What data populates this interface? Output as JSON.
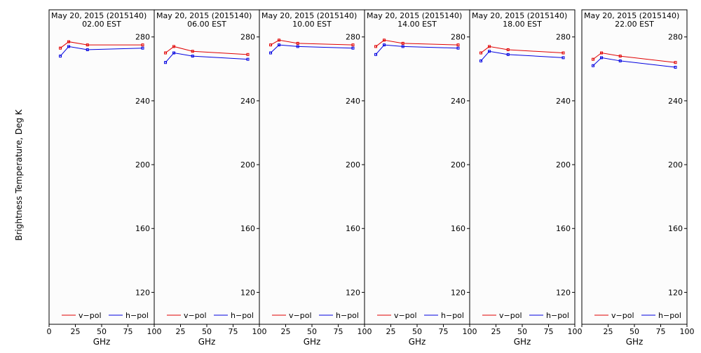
{
  "figure": {
    "ylabel": "Brightness Temperature, Deg K",
    "xlabel": "GHz"
  },
  "colors": {
    "v_pol": "#e00000",
    "h_pol": "#0000e0",
    "plot_bg": "#fcfcfc",
    "axis": "#000000"
  },
  "chart_data": [
    {
      "type": "line",
      "title": "May 20, 2015 (2015140)",
      "subtitle": "02.00 EST",
      "x": [
        10.7,
        18.7,
        36.5,
        89.0
      ],
      "series": [
        {
          "name": "v−pol",
          "values": [
            273,
            277,
            275,
            275
          ]
        },
        {
          "name": "h−pol",
          "values": [
            268,
            274,
            272,
            273
          ]
        }
      ],
      "xticks": [
        "0",
        "25",
        "50",
        "75",
        "100"
      ],
      "yticks": [
        "120",
        "160",
        "200",
        "240",
        "280"
      ],
      "xlim": [
        0,
        100
      ],
      "ylim": [
        100,
        297
      ],
      "xlabel": "GHz",
      "grid": false,
      "legend": "bottom"
    },
    {
      "type": "line",
      "title": "May 20, 2015 (2015140)",
      "subtitle": "06.00 EST",
      "x": [
        10.7,
        18.7,
        36.5,
        89.0
      ],
      "series": [
        {
          "name": "v−pol",
          "values": [
            270,
            274,
            271,
            269
          ]
        },
        {
          "name": "h−pol",
          "values": [
            264,
            270,
            268,
            266
          ]
        }
      ],
      "xticks": [
        "0",
        "25",
        "50",
        "75",
        "100"
      ],
      "yticks": [
        "120",
        "160",
        "200",
        "240",
        "280"
      ],
      "xlim": [
        0,
        100
      ],
      "ylim": [
        100,
        297
      ],
      "xlabel": "GHz",
      "grid": false,
      "legend": "bottom"
    },
    {
      "type": "line",
      "title": "May 20, 2015 (2015140)",
      "subtitle": "10.00 EST",
      "x": [
        10.7,
        18.7,
        36.5,
        89.0
      ],
      "series": [
        {
          "name": "v−pol",
          "values": [
            275,
            278,
            276,
            275
          ]
        },
        {
          "name": "h−pol",
          "values": [
            270,
            275,
            274,
            273
          ]
        }
      ],
      "xticks": [
        "0",
        "25",
        "50",
        "75",
        "100"
      ],
      "yticks": [
        "120",
        "160",
        "200",
        "240",
        "280"
      ],
      "xlim": [
        0,
        100
      ],
      "ylim": [
        100,
        297
      ],
      "xlabel": "GHz",
      "grid": false,
      "legend": "bottom"
    },
    {
      "type": "line",
      "title": "May 20, 2015 (2015140)",
      "subtitle": "14.00 EST",
      "x": [
        10.7,
        18.7,
        36.5,
        89.0
      ],
      "series": [
        {
          "name": "v−pol",
          "values": [
            274,
            278,
            276,
            275
          ]
        },
        {
          "name": "h−pol",
          "values": [
            269,
            275,
            274,
            273
          ]
        }
      ],
      "xticks": [
        "0",
        "25",
        "50",
        "75",
        "100"
      ],
      "yticks": [
        "120",
        "160",
        "200",
        "240",
        "280"
      ],
      "xlim": [
        0,
        100
      ],
      "ylim": [
        100,
        297
      ],
      "xlabel": "GHz",
      "grid": false,
      "legend": "bottom"
    },
    {
      "type": "line",
      "title": "May 20, 2015 (2015140)",
      "subtitle": "18.00 EST",
      "x": [
        10.7,
        18.7,
        36.5,
        89.0
      ],
      "series": [
        {
          "name": "v−pol",
          "values": [
            270,
            274,
            272,
            270
          ]
        },
        {
          "name": "h−pol",
          "values": [
            265,
            271,
            269,
            267
          ]
        }
      ],
      "xticks": [
        "0",
        "25",
        "50",
        "75",
        "100"
      ],
      "yticks": [
        "120",
        "160",
        "200",
        "240",
        "280"
      ],
      "xlim": [
        0,
        100
      ],
      "ylim": [
        100,
        297
      ],
      "xlabel": "GHz",
      "grid": false,
      "legend": "bottom"
    },
    {
      "type": "line",
      "title": "May 20, 2015 (2015140)",
      "subtitle": "22.00 EST",
      "x": [
        10.7,
        18.7,
        36.5,
        89.0
      ],
      "series": [
        {
          "name": "v−pol",
          "values": [
            266,
            270,
            268,
            264
          ]
        },
        {
          "name": "h−pol",
          "values": [
            262,
            267,
            265,
            261
          ]
        }
      ],
      "xticks": [
        "0",
        "25",
        "50",
        "75",
        "100"
      ],
      "yticks": [
        "120",
        "160",
        "200",
        "240",
        "280"
      ],
      "xlim": [
        0,
        100
      ],
      "ylim": [
        100,
        297
      ],
      "xlabel": "GHz",
      "grid": false,
      "legend": "bottom"
    }
  ]
}
